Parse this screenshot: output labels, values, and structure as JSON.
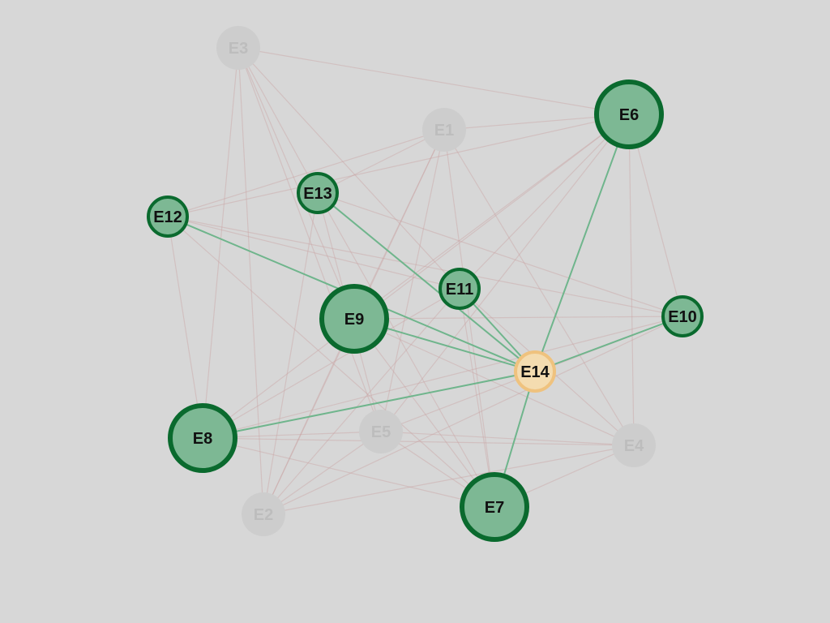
{
  "graph": {
    "background": "#d7d7d7",
    "colors": {
      "dim_node_fill": "#cdcdcd",
      "dim_node_text": "#bdbdbd",
      "dim_edge": "#c9a3a3",
      "highlight_edge": "#6fb58c",
      "neighbor_fill": "#7db894",
      "neighbor_stroke": "#0a6a2e",
      "selected_fill": "#f4dcb0",
      "selected_stroke": "#efc27e",
      "label_text": "#111111"
    },
    "selected_node": "E14",
    "nodes": [
      {
        "id": "E1",
        "label": "E1",
        "state": "dim"
      },
      {
        "id": "E2",
        "label": "E2",
        "state": "dim"
      },
      {
        "id": "E3",
        "label": "E3",
        "state": "dim"
      },
      {
        "id": "E4",
        "label": "E4",
        "state": "dim"
      },
      {
        "id": "E5",
        "label": "E5",
        "state": "dim"
      },
      {
        "id": "E6",
        "label": "E6",
        "state": "neighbor"
      },
      {
        "id": "E7",
        "label": "E7",
        "state": "neighbor"
      },
      {
        "id": "E8",
        "label": "E8",
        "state": "neighbor"
      },
      {
        "id": "E9",
        "label": "E9",
        "state": "neighbor"
      },
      {
        "id": "E10",
        "label": "E10",
        "state": "neighbor"
      },
      {
        "id": "E11",
        "label": "E11",
        "state": "neighbor"
      },
      {
        "id": "E12",
        "label": "E12",
        "state": "neighbor"
      },
      {
        "id": "E13",
        "label": "E13",
        "state": "neighbor"
      },
      {
        "id": "E14",
        "label": "E14",
        "state": "selected"
      }
    ],
    "edges": [
      [
        "E3",
        "E6"
      ],
      [
        "E3",
        "E13"
      ],
      [
        "E3",
        "E9"
      ],
      [
        "E3",
        "E8"
      ],
      [
        "E3",
        "E2"
      ],
      [
        "E3",
        "E11"
      ],
      [
        "E3",
        "E5"
      ],
      [
        "E1",
        "E6"
      ],
      [
        "E1",
        "E13"
      ],
      [
        "E1",
        "E9"
      ],
      [
        "E1",
        "E5"
      ],
      [
        "E1",
        "E4"
      ],
      [
        "E1",
        "E7"
      ],
      [
        "E1",
        "E2"
      ],
      [
        "E1",
        "E12"
      ],
      [
        "E6",
        "E12"
      ],
      [
        "E6",
        "E9"
      ],
      [
        "E6",
        "E11"
      ],
      [
        "E6",
        "E8"
      ],
      [
        "E6",
        "E10"
      ],
      [
        "E6",
        "E4"
      ],
      [
        "E6",
        "E5"
      ],
      [
        "E12",
        "E10"
      ],
      [
        "E12",
        "E8"
      ],
      [
        "E12",
        "E11"
      ],
      [
        "E12",
        "E7"
      ],
      [
        "E13",
        "E10"
      ],
      [
        "E13",
        "E2"
      ],
      [
        "E13",
        "E7"
      ],
      [
        "E13",
        "E5"
      ],
      [
        "E9",
        "E10"
      ],
      [
        "E9",
        "E4"
      ],
      [
        "E9",
        "E7"
      ],
      [
        "E9",
        "E2"
      ],
      [
        "E11",
        "E8"
      ],
      [
        "E11",
        "E4"
      ],
      [
        "E11",
        "E7"
      ],
      [
        "E11",
        "E2"
      ],
      [
        "E10",
        "E8"
      ],
      [
        "E10",
        "E2"
      ],
      [
        "E10",
        "E5"
      ],
      [
        "E8",
        "E4"
      ],
      [
        "E8",
        "E7"
      ],
      [
        "E8",
        "E5"
      ],
      [
        "E5",
        "E2"
      ],
      [
        "E5",
        "E4"
      ],
      [
        "E5",
        "E7"
      ],
      [
        "E2",
        "E4"
      ],
      [
        "E7",
        "E4"
      ],
      [
        "E14",
        "E6"
      ],
      [
        "E14",
        "E7"
      ],
      [
        "E14",
        "E8"
      ],
      [
        "E14",
        "E9"
      ],
      [
        "E14",
        "E10"
      ],
      [
        "E14",
        "E11"
      ],
      [
        "E14",
        "E12"
      ],
      [
        "E14",
        "E13"
      ]
    ]
  }
}
